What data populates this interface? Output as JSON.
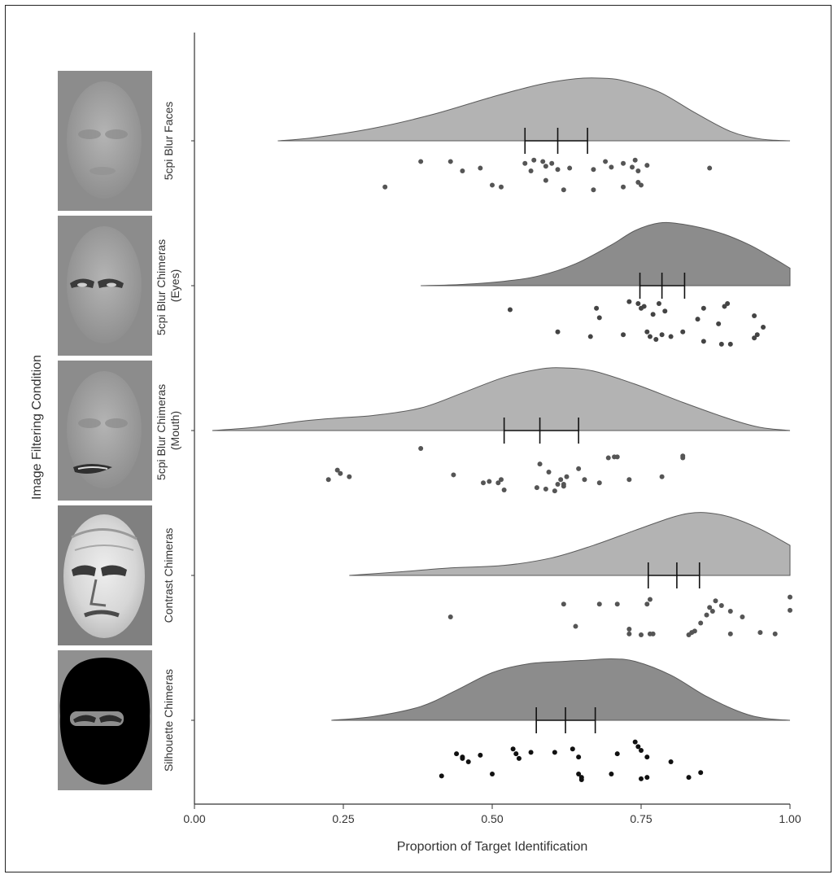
{
  "chart_data": {
    "type": "raincloud",
    "xlabel": "Proportion of Target Identification",
    "ylabel": "Image Filtering Condition",
    "xlim": [
      0,
      1
    ],
    "x_ticks": [
      "0.00",
      "0.25",
      "0.50",
      "0.75",
      "1.00"
    ],
    "x_tick_values": [
      0,
      0.25,
      0.5,
      0.75,
      1.0
    ],
    "grid": false,
    "conditions": [
      {
        "label_lines": [
          "5cpi Blur Faces"
        ],
        "image": "blurred-face",
        "fill": "#b3b3b3",
        "point_color": "#555555",
        "density_range": [
          0.14,
          1.0
        ],
        "density": [
          [
            0.14,
            0.0
          ],
          [
            0.2,
            0.05
          ],
          [
            0.3,
            0.2
          ],
          [
            0.4,
            0.42
          ],
          [
            0.5,
            0.7
          ],
          [
            0.58,
            0.9
          ],
          [
            0.64,
            0.99
          ],
          [
            0.68,
            1.0
          ],
          [
            0.72,
            0.96
          ],
          [
            0.78,
            0.78
          ],
          [
            0.84,
            0.45
          ],
          [
            0.9,
            0.15
          ],
          [
            0.95,
            0.03
          ],
          [
            1.0,
            0.0
          ]
        ],
        "mean": 0.61,
        "ci": [
          0.555,
          0.66
        ],
        "points": [
          [
            0.32,
            0.72
          ],
          [
            0.38,
            0.18
          ],
          [
            0.43,
            0.18
          ],
          [
            0.45,
            0.38
          ],
          [
            0.48,
            0.32
          ],
          [
            0.5,
            0.68
          ],
          [
            0.515,
            0.72
          ],
          [
            0.555,
            0.22
          ],
          [
            0.565,
            0.38
          ],
          [
            0.57,
            0.15
          ],
          [
            0.585,
            0.18
          ],
          [
            0.59,
            0.28
          ],
          [
            0.59,
            0.58
          ],
          [
            0.6,
            0.22
          ],
          [
            0.61,
            0.35
          ],
          [
            0.62,
            0.78
          ],
          [
            0.63,
            0.32
          ],
          [
            0.67,
            0.78
          ],
          [
            0.67,
            0.35
          ],
          [
            0.69,
            0.18
          ],
          [
            0.7,
            0.3
          ],
          [
            0.72,
            0.22
          ],
          [
            0.72,
            0.72
          ],
          [
            0.735,
            0.3
          ],
          [
            0.745,
            0.38
          ],
          [
            0.74,
            0.15
          ],
          [
            0.745,
            0.62
          ],
          [
            0.75,
            0.68
          ],
          [
            0.76,
            0.26
          ],
          [
            0.865,
            0.32
          ]
        ]
      },
      {
        "label_lines": [
          "5cpi Blur Chimeras",
          "(Eyes)"
        ],
        "image": "blurred-face-sharp-eyes",
        "fill": "#8c8c8c",
        "point_color": "#444444",
        "density_range": [
          0.38,
          1.0
        ],
        "density": [
          [
            0.38,
            0.0
          ],
          [
            0.45,
            0.02
          ],
          [
            0.52,
            0.07
          ],
          [
            0.58,
            0.16
          ],
          [
            0.64,
            0.35
          ],
          [
            0.7,
            0.65
          ],
          [
            0.74,
            0.88
          ],
          [
            0.78,
            1.0
          ],
          [
            0.82,
            0.98
          ],
          [
            0.88,
            0.85
          ],
          [
            0.93,
            0.66
          ],
          [
            0.97,
            0.45
          ],
          [
            1.0,
            0.28
          ]
        ],
        "mean": 0.785,
        "ci": [
          0.748,
          0.823
        ],
        "points": [
          [
            0.53,
            0.25
          ],
          [
            0.61,
            0.72
          ],
          [
            0.665,
            0.82
          ],
          [
            0.675,
            0.22
          ],
          [
            0.68,
            0.42
          ],
          [
            0.72,
            0.78
          ],
          [
            0.73,
            0.08
          ],
          [
            0.745,
            0.12
          ],
          [
            0.75,
            0.22
          ],
          [
            0.755,
            0.18
          ],
          [
            0.76,
            0.72
          ],
          [
            0.765,
            0.82
          ],
          [
            0.77,
            0.35
          ],
          [
            0.775,
            0.88
          ],
          [
            0.78,
            0.12
          ],
          [
            0.785,
            0.78
          ],
          [
            0.79,
            0.28
          ],
          [
            0.8,
            0.82
          ],
          [
            0.82,
            0.72
          ],
          [
            0.845,
            0.45
          ],
          [
            0.855,
            0.22
          ],
          [
            0.855,
            0.92
          ],
          [
            0.88,
            0.55
          ],
          [
            0.89,
            0.18
          ],
          [
            0.895,
            0.12
          ],
          [
            0.885,
            0.98
          ],
          [
            0.9,
            0.98
          ],
          [
            0.94,
            0.38
          ],
          [
            0.94,
            0.85
          ],
          [
            0.945,
            0.78
          ],
          [
            0.955,
            0.62
          ]
        ]
      },
      {
        "label_lines": [
          "5cpi Blur Chimeras",
          "(Mouth)"
        ],
        "image": "blurred-face-sharp-mouth",
        "fill": "#b3b3b3",
        "point_color": "#555555",
        "density_range": [
          0.03,
          1.0
        ],
        "density": [
          [
            0.03,
            0.0
          ],
          [
            0.1,
            0.05
          ],
          [
            0.18,
            0.15
          ],
          [
            0.24,
            0.2
          ],
          [
            0.3,
            0.24
          ],
          [
            0.38,
            0.36
          ],
          [
            0.45,
            0.6
          ],
          [
            0.52,
            0.85
          ],
          [
            0.58,
            0.98
          ],
          [
            0.62,
            1.0
          ],
          [
            0.67,
            0.95
          ],
          [
            0.74,
            0.74
          ],
          [
            0.82,
            0.45
          ],
          [
            0.9,
            0.18
          ],
          [
            0.95,
            0.05
          ],
          [
            1.0,
            0.0
          ]
        ],
        "mean": 0.58,
        "ci": [
          0.52,
          0.645
        ],
        "points": [
          [
            0.225,
            0.78
          ],
          [
            0.24,
            0.58
          ],
          [
            0.245,
            0.65
          ],
          [
            0.26,
            0.72
          ],
          [
            0.38,
            0.12
          ],
          [
            0.435,
            0.68
          ],
          [
            0.485,
            0.85
          ],
          [
            0.495,
            0.82
          ],
          [
            0.51,
            0.85
          ],
          [
            0.515,
            0.78
          ],
          [
            0.52,
            1.0
          ],
          [
            0.575,
            0.95
          ],
          [
            0.58,
            0.45
          ],
          [
            0.59,
            0.98
          ],
          [
            0.595,
            0.62
          ],
          [
            0.605,
            1.02
          ],
          [
            0.61,
            0.88
          ],
          [
            0.615,
            0.78
          ],
          [
            0.62,
            0.88
          ],
          [
            0.62,
            0.92
          ],
          [
            0.625,
            0.72
          ],
          [
            0.645,
            0.55
          ],
          [
            0.655,
            0.78
          ],
          [
            0.68,
            0.85
          ],
          [
            0.695,
            0.32
          ],
          [
            0.705,
            0.3
          ],
          [
            0.71,
            0.3
          ],
          [
            0.73,
            0.78
          ],
          [
            0.785,
            0.72
          ],
          [
            0.82,
            0.28
          ],
          [
            0.82,
            0.32
          ]
        ]
      },
      {
        "label_lines": [
          "Contrast Chimeras"
        ],
        "image": "contrast-inverted-face",
        "fill": "#b3b3b3",
        "point_color": "#555555",
        "density_range": [
          0.26,
          1.0
        ],
        "density": [
          [
            0.26,
            0.0
          ],
          [
            0.35,
            0.06
          ],
          [
            0.43,
            0.12
          ],
          [
            0.52,
            0.16
          ],
          [
            0.6,
            0.28
          ],
          [
            0.67,
            0.48
          ],
          [
            0.74,
            0.72
          ],
          [
            0.8,
            0.92
          ],
          [
            0.83,
            0.99
          ],
          [
            0.86,
            1.0
          ],
          [
            0.9,
            0.93
          ],
          [
            0.95,
            0.74
          ],
          [
            1.0,
            0.48
          ]
        ],
        "mean": 0.81,
        "ci": [
          0.762,
          0.848
        ],
        "points": [
          [
            0.43,
            0.62
          ],
          [
            0.62,
            0.35
          ],
          [
            0.64,
            0.82
          ],
          [
            0.68,
            0.35
          ],
          [
            0.71,
            0.35
          ],
          [
            0.73,
            0.88
          ],
          [
            0.73,
            0.98
          ],
          [
            0.75,
            1.0
          ],
          [
            0.76,
            0.35
          ],
          [
            0.765,
            0.25
          ],
          [
            0.765,
            0.98
          ],
          [
            0.77,
            0.98
          ],
          [
            0.83,
            1.0
          ],
          [
            0.835,
            0.95
          ],
          [
            0.84,
            0.92
          ],
          [
            0.85,
            0.75
          ],
          [
            0.86,
            0.58
          ],
          [
            0.865,
            0.42
          ],
          [
            0.87,
            0.5
          ],
          [
            0.875,
            0.28
          ],
          [
            0.885,
            0.38
          ],
          [
            0.9,
            0.5
          ],
          [
            0.9,
            0.98
          ],
          [
            0.92,
            0.62
          ],
          [
            0.95,
            0.95
          ],
          [
            0.975,
            0.98
          ],
          [
            1.0,
            0.2
          ],
          [
            1.0,
            0.48
          ]
        ]
      },
      {
        "label_lines": [
          "Silhouette Chimeras"
        ],
        "image": "silhouette-eyes-only",
        "fill": "#8c8c8c",
        "point_color": "#111111",
        "density_range": [
          0.23,
          1.0
        ],
        "density": [
          [
            0.23,
            0.0
          ],
          [
            0.3,
            0.06
          ],
          [
            0.38,
            0.22
          ],
          [
            0.44,
            0.48
          ],
          [
            0.5,
            0.76
          ],
          [
            0.56,
            0.9
          ],
          [
            0.62,
            0.94
          ],
          [
            0.66,
            0.96
          ],
          [
            0.7,
            0.98
          ],
          [
            0.74,
            0.94
          ],
          [
            0.8,
            0.72
          ],
          [
            0.86,
            0.38
          ],
          [
            0.92,
            0.12
          ],
          [
            0.96,
            0.03
          ],
          [
            1.0,
            0.0
          ]
        ],
        "mean": 0.623,
        "ci": [
          0.574,
          0.673
        ],
        "points": [
          [
            0.415,
            0.92
          ],
          [
            0.44,
            0.45
          ],
          [
            0.45,
            0.52
          ],
          [
            0.45,
            0.55
          ],
          [
            0.46,
            0.62
          ],
          [
            0.48,
            0.48
          ],
          [
            0.5,
            0.88
          ],
          [
            0.535,
            0.35
          ],
          [
            0.54,
            0.45
          ],
          [
            0.545,
            0.55
          ],
          [
            0.565,
            0.42
          ],
          [
            0.605,
            0.42
          ],
          [
            0.635,
            0.35
          ],
          [
            0.645,
            0.52
          ],
          [
            0.645,
            0.88
          ],
          [
            0.65,
            0.95
          ],
          [
            0.65,
            1.0
          ],
          [
            0.7,
            0.88
          ],
          [
            0.71,
            0.45
          ],
          [
            0.74,
            0.2
          ],
          [
            0.745,
            0.3
          ],
          [
            0.75,
            0.38
          ],
          [
            0.76,
            0.52
          ],
          [
            0.75,
            0.98
          ],
          [
            0.76,
            0.95
          ],
          [
            0.8,
            0.62
          ],
          [
            0.83,
            0.95
          ],
          [
            0.85,
            0.85
          ]
        ]
      }
    ]
  }
}
